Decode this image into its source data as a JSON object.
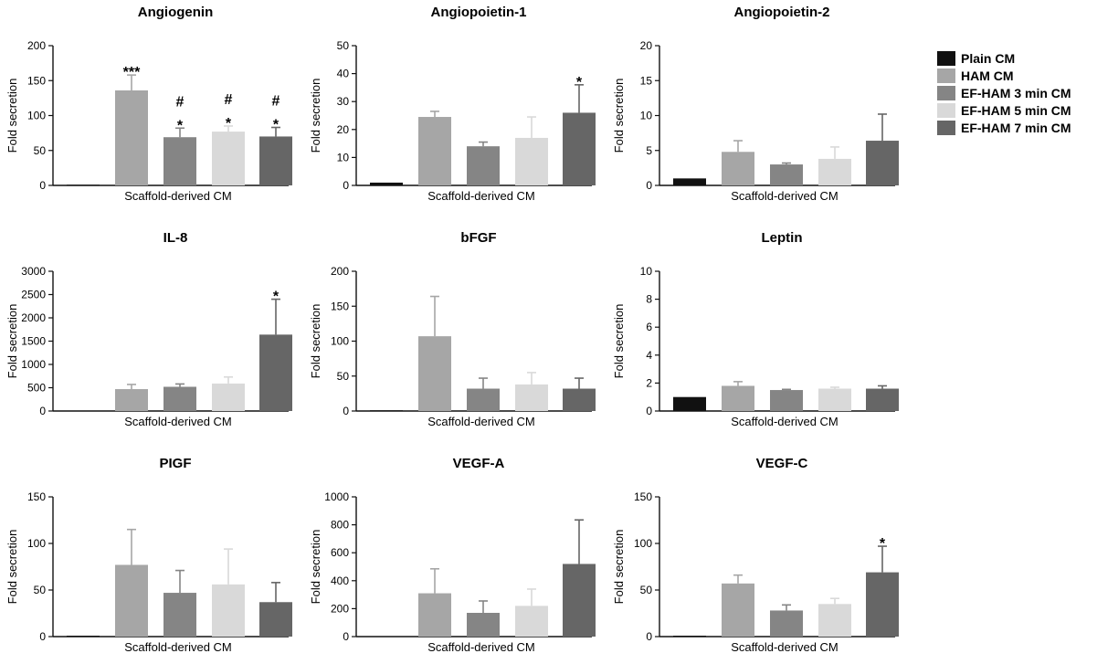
{
  "figure": {
    "legend": [
      {
        "label": "Plain CM",
        "color": "#111111"
      },
      {
        "label": "HAM CM",
        "color": "#a6a6a6"
      },
      {
        "label": "EF-HAM 3 min CM",
        "color": "#858585"
      },
      {
        "label": "EF-HAM 5 min CM",
        "color": "#d9d9d9"
      },
      {
        "label": "EF-HAM 7 min CM",
        "color": "#666666"
      }
    ]
  },
  "chart_data": [
    {
      "type": "bar",
      "title": "Angiogenin",
      "xlabel": "Scaffold-derived CM",
      "ylabel": "Fold secretion",
      "ylim": [
        0,
        200
      ],
      "yticks": [
        0,
        50,
        100,
        150,
        200
      ],
      "categories": [
        "Plain CM",
        "HAM CM",
        "EF-HAM 3 min CM",
        "EF-HAM 5 min CM",
        "EF-HAM 7 min CM"
      ],
      "values": [
        1,
        136,
        69,
        77,
        70
      ],
      "errors": [
        0,
        22,
        13,
        8,
        13
      ],
      "annotations": [
        "",
        "***",
        "#\n*",
        "#\n*",
        "#\n*"
      ]
    },
    {
      "type": "bar",
      "title": "Angiopoietin-1",
      "xlabel": "Scaffold-derived CM",
      "ylabel": "Fold secretion",
      "ylim": [
        0,
        50
      ],
      "yticks": [
        0,
        10,
        20,
        30,
        40,
        50
      ],
      "categories": [
        "Plain CM",
        "HAM CM",
        "EF-HAM 3 min CM",
        "EF-HAM 5 min CM",
        "EF-HAM 7 min CM"
      ],
      "values": [
        1,
        24.5,
        14,
        17,
        26
      ],
      "errors": [
        0,
        2,
        1.5,
        7.5,
        10
      ],
      "annotations": [
        "",
        "",
        "",
        "",
        "*"
      ]
    },
    {
      "type": "bar",
      "title": "Angiopoietin-2",
      "xlabel": "Scaffold-derived CM",
      "ylabel": "Fold secretion",
      "ylim": [
        0,
        20
      ],
      "yticks": [
        0,
        5,
        10,
        15,
        20
      ],
      "categories": [
        "Plain CM",
        "HAM CM",
        "EF-HAM 3 min CM",
        "EF-HAM 5 min CM",
        "EF-HAM 7 min CM"
      ],
      "values": [
        1,
        4.8,
        3,
        3.8,
        6.4
      ],
      "errors": [
        0,
        1.6,
        0.2,
        1.7,
        3.8
      ],
      "annotations": [
        "",
        "",
        "",
        "",
        ""
      ]
    },
    {
      "type": "bar",
      "title": "IL-8",
      "xlabel": "Scaffold-derived CM",
      "ylabel": "Fold secretion",
      "ylim": [
        0,
        3000
      ],
      "yticks": [
        0,
        500,
        1000,
        1500,
        2000,
        2500,
        3000
      ],
      "categories": [
        "Plain CM",
        "HAM CM",
        "EF-HAM 3 min CM",
        "EF-HAM 5 min CM",
        "EF-HAM 7 min CM"
      ],
      "values": [
        1,
        470,
        520,
        590,
        1640
      ],
      "errors": [
        0,
        100,
        60,
        140,
        760
      ],
      "annotations": [
        "",
        "",
        "",
        "",
        "*"
      ]
    },
    {
      "type": "bar",
      "title": "bFGF",
      "xlabel": "Scaffold-derived CM",
      "ylabel": "Fold secretion",
      "ylim": [
        0,
        200
      ],
      "yticks": [
        0,
        50,
        100,
        150,
        200
      ],
      "categories": [
        "Plain CM",
        "HAM CM",
        "EF-HAM 3 min CM",
        "EF-HAM 5 min CM",
        "EF-HAM 7 min CM"
      ],
      "values": [
        1,
        107,
        32,
        38,
        32
      ],
      "errors": [
        0,
        57,
        15,
        17,
        15
      ],
      "annotations": [
        "",
        "",
        "",
        "",
        ""
      ]
    },
    {
      "type": "bar",
      "title": "Leptin",
      "xlabel": "Scaffold-derived CM",
      "ylabel": "Fold secretion",
      "ylim": [
        0,
        10
      ],
      "yticks": [
        0,
        2,
        4,
        6,
        8,
        10
      ],
      "categories": [
        "Plain CM",
        "HAM CM",
        "EF-HAM 3 min CM",
        "EF-HAM 5 min CM",
        "EF-HAM 7 min CM"
      ],
      "values": [
        1,
        1.8,
        1.5,
        1.6,
        1.6
      ],
      "errors": [
        0,
        0.3,
        0.05,
        0.1,
        0.2
      ],
      "annotations": [
        "",
        "",
        "",
        "",
        ""
      ]
    },
    {
      "type": "bar",
      "title": "PIGF",
      "xlabel": "Scaffold-derived CM",
      "ylabel": "Fold secretion",
      "ylim": [
        0,
        150
      ],
      "yticks": [
        0,
        50,
        100,
        150
      ],
      "categories": [
        "Plain CM",
        "HAM CM",
        "EF-HAM 3 min CM",
        "EF-HAM 5 min CM",
        "EF-HAM 7 min CM"
      ],
      "values": [
        1,
        77,
        47,
        56,
        37
      ],
      "errors": [
        0,
        38,
        24,
        38,
        21
      ],
      "annotations": [
        "",
        "",
        "",
        "",
        ""
      ]
    },
    {
      "type": "bar",
      "title": "VEGF-A",
      "xlabel": "Scaffold-derived CM",
      "ylabel": "Fold secretion",
      "ylim": [
        0,
        1000
      ],
      "yticks": [
        0,
        200,
        400,
        600,
        800,
        1000
      ],
      "categories": [
        "Plain CM",
        "HAM CM",
        "EF-HAM 3 min CM",
        "EF-HAM 5 min CM",
        "EF-HAM 7 min CM"
      ],
      "values": [
        1,
        310,
        170,
        220,
        520
      ],
      "errors": [
        0,
        175,
        85,
        120,
        315
      ],
      "annotations": [
        "",
        "",
        "",
        "",
        ""
      ]
    },
    {
      "type": "bar",
      "title": "VEGF-C",
      "xlabel": "Scaffold-derived CM",
      "ylabel": "Fold secretion",
      "ylim": [
        0,
        150
      ],
      "yticks": [
        0,
        50,
        100,
        150
      ],
      "categories": [
        "Plain CM",
        "HAM CM",
        "EF-HAM 3 min CM",
        "EF-HAM 5 min CM",
        "EF-HAM 7 min CM"
      ],
      "values": [
        1,
        57,
        28,
        35,
        69
      ],
      "errors": [
        0,
        9,
        6,
        6,
        28
      ],
      "annotations": [
        "",
        "",
        "",
        "",
        "*"
      ]
    }
  ]
}
